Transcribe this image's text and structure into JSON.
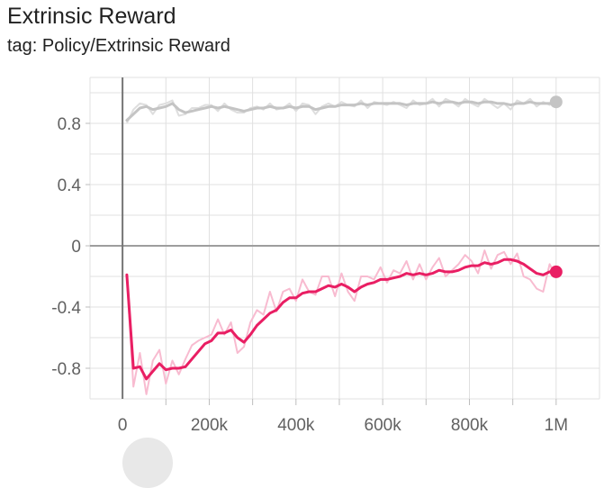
{
  "card": {
    "title": "Extrinsic Reward",
    "tag": "tag: Policy/Extrinsic Reward"
  },
  "chart_data": {
    "type": "line",
    "title": "Extrinsic Reward",
    "subtitle": "tag: Policy/Extrinsic Reward",
    "xlabel": "",
    "ylabel": "",
    "xlim": [
      -75000,
      1100000
    ],
    "ylim": [
      -1.0,
      1.1
    ],
    "x_ticks": [
      0,
      200000,
      400000,
      600000,
      800000,
      1000000
    ],
    "x_tick_labels": [
      "0",
      "200k",
      "400k",
      "600k",
      "800k",
      "1M"
    ],
    "y_ticks": [
      0.8,
      0.4,
      0,
      -0.4,
      -0.8
    ],
    "y_tick_labels": [
      "0.8",
      "0.4",
      "0",
      "-0.4",
      "-0.8"
    ],
    "grid": true,
    "legend": "none",
    "colors": {
      "gray_smoothed": "#c4c4c4",
      "gray_raw": "#dedede",
      "pink_smoothed": "#e91e63",
      "pink_raw": "#f8bbd0",
      "grid": "#e0e0e0",
      "axis": "#9e9e9e"
    },
    "series": [
      {
        "color": "#c4c4c4",
        "raw_color": "#dedede",
        "x": [
          10000,
          25000,
          40000,
          55000,
          70000,
          85000,
          100000,
          115000,
          130000,
          145000,
          160000,
          175000,
          190000,
          205000,
          220000,
          235000,
          250000,
          265000,
          280000,
          295000,
          310000,
          325000,
          340000,
          355000,
          370000,
          385000,
          400000,
          415000,
          430000,
          445000,
          460000,
          475000,
          490000,
          505000,
          520000,
          535000,
          550000,
          565000,
          580000,
          595000,
          610000,
          625000,
          640000,
          655000,
          670000,
          685000,
          700000,
          715000,
          730000,
          745000,
          760000,
          775000,
          790000,
          805000,
          820000,
          835000,
          850000,
          865000,
          880000,
          895000,
          910000,
          925000,
          940000,
          955000,
          970000,
          985000,
          1000000
        ],
        "values": [
          0.82,
          0.86,
          0.9,
          0.91,
          0.89,
          0.9,
          0.91,
          0.93,
          0.89,
          0.87,
          0.88,
          0.89,
          0.9,
          0.91,
          0.9,
          0.91,
          0.9,
          0.89,
          0.88,
          0.89,
          0.9,
          0.9,
          0.91,
          0.9,
          0.9,
          0.91,
          0.9,
          0.91,
          0.91,
          0.89,
          0.9,
          0.91,
          0.91,
          0.92,
          0.92,
          0.92,
          0.93,
          0.92,
          0.93,
          0.93,
          0.93,
          0.93,
          0.93,
          0.92,
          0.93,
          0.93,
          0.93,
          0.94,
          0.93,
          0.94,
          0.94,
          0.93,
          0.94,
          0.94,
          0.93,
          0.94,
          0.94,
          0.93,
          0.93,
          0.92,
          0.93,
          0.93,
          0.94,
          0.93,
          0.93,
          0.93,
          0.94
        ],
        "raw": [
          0.8,
          0.89,
          0.93,
          0.92,
          0.86,
          0.92,
          0.93,
          0.95,
          0.85,
          0.86,
          0.9,
          0.9,
          0.92,
          0.92,
          0.88,
          0.93,
          0.89,
          0.87,
          0.87,
          0.9,
          0.91,
          0.89,
          0.93,
          0.89,
          0.9,
          0.93,
          0.88,
          0.93,
          0.92,
          0.86,
          0.91,
          0.93,
          0.91,
          0.94,
          0.92,
          0.91,
          0.95,
          0.9,
          0.94,
          0.93,
          0.92,
          0.94,
          0.92,
          0.9,
          0.95,
          0.92,
          0.93,
          0.96,
          0.91,
          0.96,
          0.94,
          0.91,
          0.96,
          0.93,
          0.91,
          0.96,
          0.93,
          0.9,
          0.93,
          0.89,
          0.95,
          0.93,
          0.96,
          0.91,
          0.94,
          0.92,
          0.95
        ]
      },
      {
        "color": "#e91e63",
        "raw_color": "#f8bbd0",
        "x": [
          10000,
          25000,
          40000,
          55000,
          70000,
          85000,
          100000,
          115000,
          130000,
          145000,
          160000,
          175000,
          190000,
          205000,
          220000,
          235000,
          250000,
          265000,
          280000,
          295000,
          310000,
          325000,
          340000,
          355000,
          370000,
          385000,
          400000,
          415000,
          430000,
          445000,
          460000,
          475000,
          490000,
          505000,
          520000,
          535000,
          550000,
          565000,
          580000,
          595000,
          610000,
          625000,
          640000,
          655000,
          670000,
          685000,
          700000,
          715000,
          730000,
          745000,
          760000,
          775000,
          790000,
          805000,
          820000,
          835000,
          850000,
          865000,
          880000,
          895000,
          910000,
          925000,
          940000,
          955000,
          970000,
          985000,
          1000000
        ],
        "values": [
          -0.19,
          -0.8,
          -0.79,
          -0.87,
          -0.82,
          -0.77,
          -0.81,
          -0.8,
          -0.8,
          -0.79,
          -0.74,
          -0.69,
          -0.64,
          -0.62,
          -0.57,
          -0.57,
          -0.55,
          -0.6,
          -0.63,
          -0.58,
          -0.52,
          -0.48,
          -0.44,
          -0.42,
          -0.37,
          -0.34,
          -0.34,
          -0.31,
          -0.3,
          -0.3,
          -0.28,
          -0.26,
          -0.27,
          -0.25,
          -0.27,
          -0.3,
          -0.27,
          -0.25,
          -0.24,
          -0.22,
          -0.22,
          -0.21,
          -0.2,
          -0.18,
          -0.19,
          -0.18,
          -0.19,
          -0.18,
          -0.16,
          -0.17,
          -0.17,
          -0.16,
          -0.14,
          -0.13,
          -0.13,
          -0.11,
          -0.12,
          -0.11,
          -0.09,
          -0.09,
          -0.1,
          -0.12,
          -0.15,
          -0.18,
          -0.19,
          -0.17,
          -0.17
        ],
        "raw": [
          -0.2,
          -0.92,
          -0.7,
          -0.97,
          -0.75,
          -0.68,
          -0.9,
          -0.75,
          -0.84,
          -0.74,
          -0.65,
          -0.62,
          -0.6,
          -0.58,
          -0.48,
          -0.58,
          -0.5,
          -0.7,
          -0.66,
          -0.5,
          -0.42,
          -0.45,
          -0.3,
          -0.43,
          -0.3,
          -0.28,
          -0.36,
          -0.22,
          -0.3,
          -0.32,
          -0.2,
          -0.2,
          -0.33,
          -0.18,
          -0.3,
          -0.36,
          -0.2,
          -0.2,
          -0.22,
          -0.14,
          -0.24,
          -0.16,
          -0.18,
          -0.1,
          -0.22,
          -0.12,
          -0.22,
          -0.14,
          -0.08,
          -0.2,
          -0.16,
          -0.12,
          -0.06,
          -0.1,
          -0.18,
          -0.03,
          -0.15,
          -0.06,
          -0.04,
          -0.12,
          -0.05,
          -0.2,
          -0.22,
          -0.28,
          -0.3,
          -0.12,
          -0.2
        ]
      }
    ]
  }
}
